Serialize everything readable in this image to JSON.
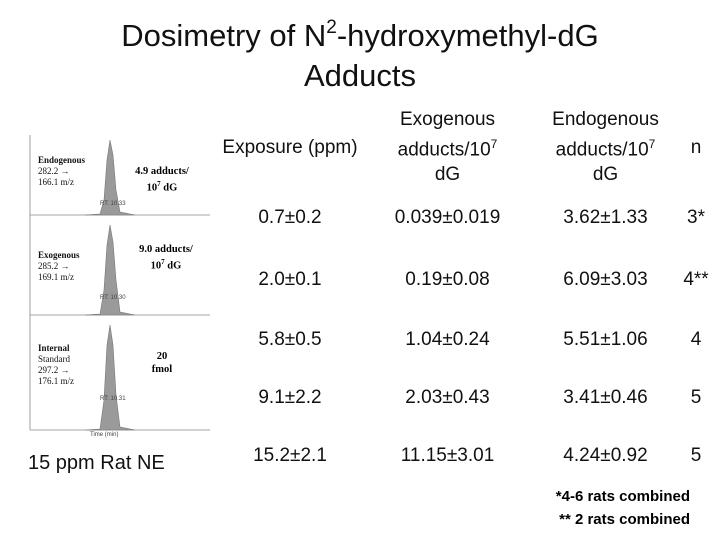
{
  "title": {
    "line1_a": "Dosimetry of N",
    "line1_sup": "2",
    "line1_b": "-hydroxymethyl-dG",
    "line2": "Adducts"
  },
  "left": {
    "panels": [
      {
        "label": [
          "Endogenous",
          "282.2 →",
          "166.1 m/z"
        ],
        "rt": "RT: 10.33",
        "amount": {
          "line1": "4.9 adducts/",
          "base": "10",
          "exp": "7",
          "unit": " dG"
        }
      },
      {
        "label": [
          "Exogenous",
          "285.2 →",
          "169.1 m/z"
        ],
        "rt": "RT: 10.30",
        "amount": {
          "line1": "9.0 adducts/",
          "base": "10",
          "exp": "7",
          "unit": " dG"
        }
      },
      {
        "label": [
          "Internal",
          "Standard",
          "297.2 →",
          "176.1 m/z"
        ],
        "rt": "RT: 10.31",
        "amount": {
          "line1": "20",
          "base": "fmol",
          "exp": "",
          "unit": ""
        }
      }
    ],
    "x_axis": "Time (min)",
    "caption": "15 ppm Rat NE"
  },
  "table": {
    "header": [
      {
        "text": "Exposure (ppm)"
      },
      {
        "text": "Exogenous adducts/10",
        "sup": "7",
        "tail": "dG"
      },
      {
        "text": "Endogenous adducts/10",
        "sup": "7",
        "tail": "dG"
      },
      {
        "text": "n"
      }
    ],
    "rows": [
      [
        "0.7±0.2",
        "0.039±0.019",
        "3.62±1.33",
        "3*"
      ],
      [
        "2.0±0.1",
        "0.19±0.08",
        "6.09±3.03",
        "4**"
      ],
      [
        "5.8±0.5",
        "1.04±0.24",
        "5.51±1.06",
        "4"
      ],
      [
        "9.1±2.2",
        "2.03±0.43",
        "3.41±0.46",
        "5"
      ],
      [
        "15.2±2.1",
        "11.15±3.01",
        "4.24±0.92",
        "5"
      ]
    ]
  },
  "footnotes": [
    "*4-6 rats combined",
    "** 2 rats combined"
  ]
}
